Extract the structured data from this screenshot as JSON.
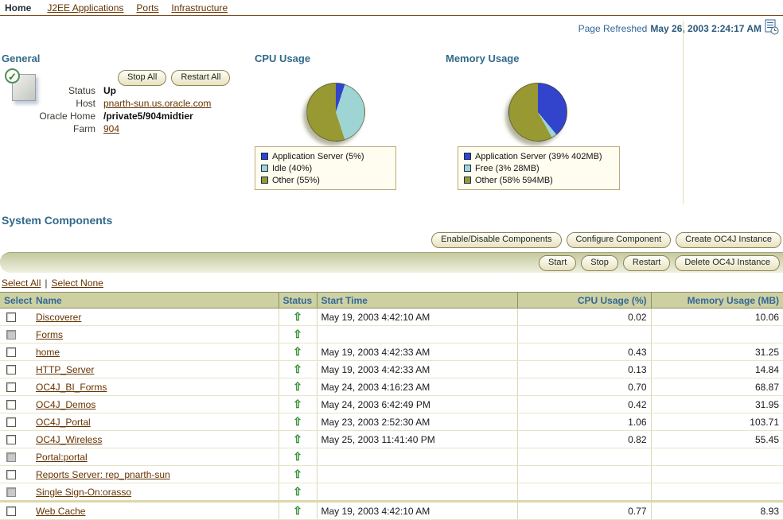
{
  "colors": {
    "heading": "#31698a",
    "link": "#663300",
    "table_header_bg": "#cdd1a2",
    "app_server_blue": "#3344cc",
    "idle_free_lightblue": "#9fd4d4",
    "other_olive": "#999933",
    "status_green": "#2e8b2e"
  },
  "icons": {
    "check": "✓",
    "up_arrow": "⇧"
  },
  "tabs": {
    "active": "Home",
    "links": [
      "J2EE Applications",
      "Ports",
      "Infrastructure"
    ]
  },
  "refresh": {
    "label": "Page Refreshed",
    "timestamp": "May 26, 2003 2:24:17 AM"
  },
  "general": {
    "title": "General",
    "stop_all": "Stop All",
    "restart_all": "Restart All",
    "fields": [
      {
        "label": "Status",
        "value": "Up",
        "type": "bold"
      },
      {
        "label": "Host",
        "value": "pnarth-sun.us.oracle.com",
        "type": "link"
      },
      {
        "label": "Oracle Home",
        "value": "/private5/904midtier",
        "type": "bold"
      },
      {
        "label": "Farm",
        "value": "904",
        "type": "link"
      }
    ]
  },
  "cpu_usage": {
    "title": "CPU Usage",
    "legend": [
      {
        "label": "Application Server (5%)",
        "color": "#3344cc"
      },
      {
        "label": "Idle (40%)",
        "color": "#9fd4d4"
      },
      {
        "label": "Other (55%)",
        "color": "#999933"
      }
    ]
  },
  "memory_usage": {
    "title": "Memory Usage",
    "legend": [
      {
        "label": "Application Server (39% 402MB)",
        "color": "#3344cc"
      },
      {
        "label": "Free (3% 28MB)",
        "color": "#9fd4d4"
      },
      {
        "label": "Other (58% 594MB)",
        "color": "#999933"
      }
    ]
  },
  "chart_data": [
    {
      "type": "pie",
      "title": "CPU Usage",
      "labels": [
        "Application Server",
        "Idle",
        "Other"
      ],
      "values": [
        5,
        40,
        55
      ],
      "colors": [
        "#3344cc",
        "#9fd4d4",
        "#999933"
      ],
      "legend_position": "bottom"
    },
    {
      "type": "pie",
      "title": "Memory Usage",
      "labels": [
        "Application Server",
        "Free",
        "Other"
      ],
      "values": [
        39,
        3,
        58
      ],
      "megabytes": [
        402,
        28,
        594
      ],
      "colors": [
        "#3344cc",
        "#9fd4d4",
        "#999933"
      ],
      "legend_position": "bottom"
    }
  ],
  "system_components": {
    "title": "System Components",
    "actions_top": [
      "Enable/Disable Components",
      "Configure Component",
      "Create OC4J Instance"
    ],
    "actions_bar": [
      "Start",
      "Stop",
      "Restart",
      "Delete OC4J Instance"
    ],
    "select_all": "Select All",
    "select_none": "Select None",
    "separator": "|",
    "columns": [
      "Select",
      "Name",
      "Status",
      "Start Time",
      "CPU Usage (%)",
      "Memory Usage (MB)"
    ],
    "rows": [
      {
        "name": "Discoverer",
        "status": "up",
        "start_time": "May 19, 2003 4:42:10 AM",
        "cpu": "0.02",
        "memory": "10.06",
        "checkbox_enabled": true
      },
      {
        "name": "Forms",
        "status": "up",
        "start_time": "",
        "cpu": "",
        "memory": "",
        "checkbox_enabled": false
      },
      {
        "name": "home",
        "status": "up",
        "start_time": "May 19, 2003 4:42:33 AM",
        "cpu": "0.43",
        "memory": "31.25",
        "checkbox_enabled": true
      },
      {
        "name": "HTTP_Server",
        "status": "up",
        "start_time": "May 19, 2003 4:42:33 AM",
        "cpu": "0.13",
        "memory": "14.84",
        "checkbox_enabled": true
      },
      {
        "name": "OC4J_BI_Forms",
        "status": "up",
        "start_time": "May 24, 2003 4:16:23 AM",
        "cpu": "0.70",
        "memory": "68.87",
        "checkbox_enabled": true
      },
      {
        "name": "OC4J_Demos",
        "status": "up",
        "start_time": "May 24, 2003 6:42:49 PM",
        "cpu": "0.42",
        "memory": "31.95",
        "checkbox_enabled": true
      },
      {
        "name": "OC4J_Portal",
        "status": "up",
        "start_time": "May 23, 2003 2:52:30 AM",
        "cpu": "1.06",
        "memory": "103.71",
        "checkbox_enabled": true
      },
      {
        "name": "OC4J_Wireless",
        "status": "up",
        "start_time": "May 25, 2003 11:41:40 PM",
        "cpu": "0.82",
        "memory": "55.45",
        "checkbox_enabled": true
      },
      {
        "name": "Portal:portal",
        "status": "up",
        "start_time": "",
        "cpu": "",
        "memory": "",
        "checkbox_enabled": false
      },
      {
        "name": "Reports Server: rep_pnarth-sun",
        "status": "up",
        "start_time": "",
        "cpu": "",
        "memory": "",
        "checkbox_enabled": true
      },
      {
        "name": "Single Sign-On:orasso",
        "status": "up",
        "start_time": "",
        "cpu": "",
        "memory": "",
        "checkbox_enabled": false
      },
      {
        "name": "Web Cache",
        "status": "up",
        "start_time": "May 19, 2003 4:42:10 AM",
        "cpu": "0.77",
        "memory": "8.93",
        "checkbox_enabled": true
      }
    ]
  }
}
